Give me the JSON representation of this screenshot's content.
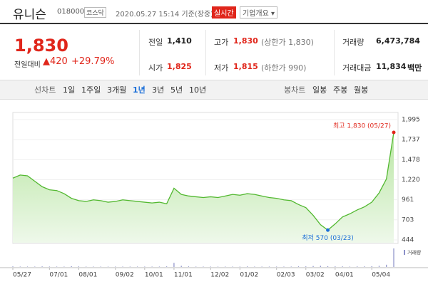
{
  "header": {
    "name": "유니슨",
    "code": "018000",
    "market": "코스닥",
    "timestamp": "2020.05.27 15:14 기준(장중)",
    "realtime": "실시간",
    "company_info": "기업개요"
  },
  "price": {
    "current": "1,830",
    "change_label": "전일대비",
    "change": "420",
    "change_rate": "+29.79%"
  },
  "summary": [
    [
      {
        "label": "전일",
        "value": "1,410"
      },
      {
        "label": "고가",
        "value": "1,830",
        "note": "(상한가 1,830)"
      },
      {
        "label": "거래량",
        "value": "6,473,784"
      }
    ],
    [
      {
        "label": "시가",
        "value": "1,825"
      },
      {
        "label": "저가",
        "value": "1,815",
        "note": "(하한가 990)"
      },
      {
        "label": "거래대금",
        "value": "11,834",
        "unit": "백만"
      }
    ]
  ],
  "tabs": {
    "line": {
      "label": "선차트",
      "items": [
        "1일",
        "1주일",
        "3개월",
        "1년",
        "3년",
        "5년",
        "10년"
      ],
      "selected": 4
    },
    "candle": {
      "label": "봉차트",
      "items": [
        "일봉",
        "주봉",
        "월봉"
      ]
    }
  },
  "chart": {
    "type": "line",
    "color": "#52b830",
    "categories": [
      "05/27",
      null,
      null,
      null,
      null,
      "07/01",
      null,
      null,
      null,
      "08/01",
      null,
      null,
      null,
      null,
      "09/02",
      null,
      null,
      null,
      "10/01",
      null,
      null,
      null,
      "11/01",
      null,
      null,
      null,
      null,
      "12/02",
      null,
      null,
      null,
      "01/02",
      null,
      null,
      null,
      null,
      "02/03",
      null,
      null,
      null,
      "03/02",
      null,
      null,
      null,
      "04/01",
      null,
      null,
      null,
      null,
      "05/04",
      null,
      null,
      null
    ],
    "values": [
      1240,
      1280,
      1270,
      1200,
      1130,
      1090,
      1080,
      1040,
      980,
      950,
      940,
      960,
      950,
      930,
      940,
      960,
      950,
      940,
      930,
      920,
      930,
      910,
      1110,
      1030,
      1010,
      1000,
      990,
      1000,
      990,
      1010,
      1030,
      1020,
      1040,
      1030,
      1010,
      990,
      980,
      960,
      950,
      900,
      860,
      760,
      640,
      570,
      650,
      740,
      780,
      830,
      870,
      930,
      1050,
      1230,
      1830
    ],
    "ylim": [
      444,
      1995
    ],
    "yticks": [
      444,
      703,
      961,
      {
        "value": 1220,
        "label": "1,220"
      },
      {
        "value": 1478,
        "label": "1,478"
      },
      {
        "value": 1737,
        "label": "1,737"
      },
      {
        "value": 1995,
        "label": "1,995"
      }
    ],
    "high": {
      "label": "최고 1,830 (05/27)",
      "color": "#e0261b"
    },
    "low": {
      "label": "최저 570 (03/23)",
      "color": "#1a6ed8"
    },
    "volume": {
      "name": "거래량",
      "color": "#8a8fc8",
      "values": [
        3,
        2,
        2,
        2,
        3,
        2,
        2,
        2,
        4,
        3,
        2,
        2,
        2,
        2,
        2,
        2,
        2,
        2,
        2,
        2,
        2,
        3,
        22,
        6,
        3,
        2,
        2,
        2,
        2,
        2,
        2,
        2,
        3,
        2,
        2,
        2,
        2,
        2,
        2,
        3,
        3,
        5,
        6,
        4,
        3,
        3,
        2,
        3,
        3,
        4,
        6,
        12,
        100
      ]
    }
  }
}
